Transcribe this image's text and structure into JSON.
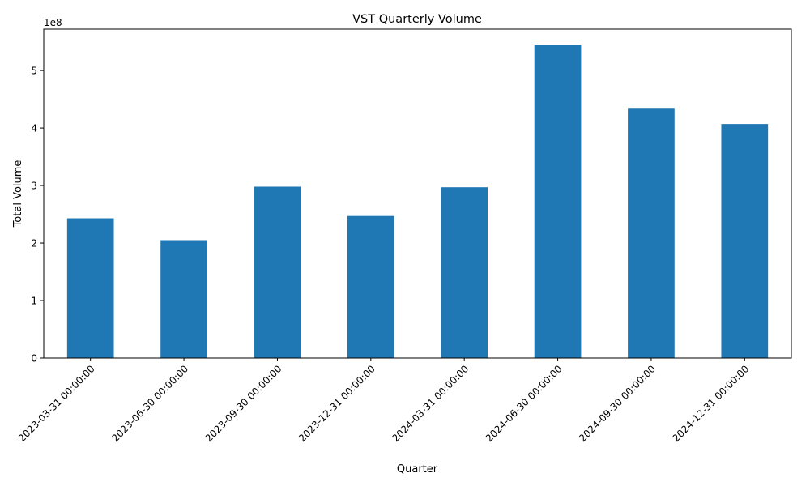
{
  "chart_data": {
    "type": "bar",
    "title": "VST Quarterly Volume",
    "xlabel": "Quarter",
    "ylabel": "Total Volume",
    "y_scale_label": "1e8",
    "categories": [
      "2023-03-31 00:00:00",
      "2023-06-30 00:00:00",
      "2023-09-30 00:00:00",
      "2023-12-31 00:00:00",
      "2024-03-31 00:00:00",
      "2024-06-30 00:00:00",
      "2024-09-30 00:00:00",
      "2024-12-31 00:00:00"
    ],
    "values": [
      243000000,
      205000000,
      298000000,
      247000000,
      297000000,
      545000000,
      435000000,
      407000000
    ],
    "ylim": [
      0,
      572000000
    ],
    "yticks": [
      0,
      100000000,
      200000000,
      300000000,
      400000000,
      500000000
    ],
    "ytick_labels": [
      "0",
      "1",
      "2",
      "3",
      "4",
      "5"
    ],
    "grid": false,
    "bar_color": "#1f77b4"
  }
}
